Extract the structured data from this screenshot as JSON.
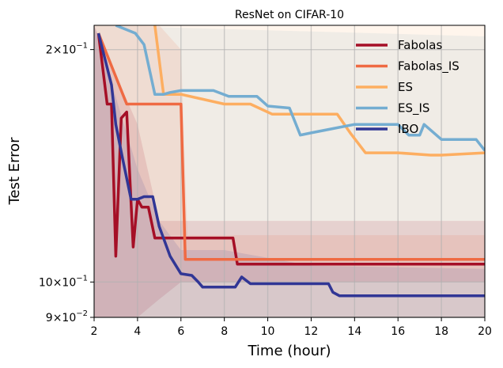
{
  "chart_data": {
    "type": "line",
    "title": "ResNet on CIFAR-10",
    "xlabel": "Time (hour)",
    "ylabel": "Test Error",
    "yscale": "log",
    "xlim": [
      2,
      20
    ],
    "ylim": [
      0.09,
      0.215
    ],
    "grid": true,
    "legend_position": "top-right",
    "x_ticks": [
      2,
      4,
      6,
      8,
      10,
      12,
      14,
      16,
      18,
      20
    ],
    "x_tick_labels": [
      "2",
      "4",
      "6",
      "8",
      "10",
      "12",
      "14",
      "16",
      "18",
      "20"
    ],
    "y_ticks": [
      0.2,
      0.1,
      0.09
    ],
    "y_tick_labels": [
      {
        "base": "2",
        "exp": "−1",
        "value": 0.2
      },
      {
        "base": "10",
        "exp": "−1",
        "value": 0.1
      },
      {
        "base": "9",
        "exp": "−2",
        "value": 0.09
      }
    ],
    "series": [
      {
        "name": "Fabolas",
        "color": "#a50f26",
        "x": [
          2.2,
          2.6,
          2.8,
          3.0,
          3.25,
          3.5,
          3.8,
          4.0,
          4.2,
          4.5,
          4.8,
          5.5,
          6.0,
          7.0,
          8.0,
          8.4,
          8.6,
          10.0,
          12.0,
          14.0,
          16.0,
          18.0,
          20.0
        ],
        "y": [
          0.21,
          0.17,
          0.17,
          0.108,
          0.163,
          0.166,
          0.111,
          0.128,
          0.125,
          0.125,
          0.114,
          0.114,
          0.114,
          0.114,
          0.114,
          0.114,
          0.1055,
          0.1055,
          0.1055,
          0.1055,
          0.1055,
          0.1055,
          0.1055
        ]
      },
      {
        "name": "Fabolas_IS",
        "color": "#ef6a43",
        "x": [
          2.2,
          3.5,
          3.6,
          5.0,
          5.8,
          6.0,
          6.2,
          8.0,
          10.0,
          12.0,
          14.0,
          16.0,
          18.0,
          20.0
        ],
        "y": [
          0.21,
          0.17,
          0.17,
          0.17,
          0.17,
          0.17,
          0.107,
          0.107,
          0.107,
          0.107,
          0.107,
          0.107,
          0.107,
          0.107
        ]
      },
      {
        "name": "ES",
        "color": "#fdae61",
        "x": [
          4.8,
          5.2,
          6.0,
          8.0,
          9.2,
          10.2,
          11.0,
          13.2,
          13.8,
          14.5,
          16.0,
          17.5,
          18.0,
          20.0
        ],
        "y": [
          0.215,
          0.175,
          0.175,
          0.17,
          0.17,
          0.165,
          0.165,
          0.165,
          0.156,
          0.147,
          0.147,
          0.146,
          0.146,
          0.147
        ]
      },
      {
        "name": "ES_IS",
        "color": "#74add1",
        "x": [
          3.0,
          3.9,
          4.3,
          4.8,
          5.2,
          5.5,
          6.0,
          7.5,
          8.2,
          8.5,
          9.0,
          9.5,
          10.0,
          11.0,
          11.5,
          12.0,
          13.0,
          14.0,
          15.0,
          16.0,
          16.5,
          17.0,
          17.2,
          18.0,
          19.0,
          19.6,
          20.0
        ],
        "y": [
          0.215,
          0.21,
          0.203,
          0.175,
          0.175,
          0.176,
          0.177,
          0.177,
          0.174,
          0.174,
          0.174,
          0.174,
          0.169,
          0.168,
          0.155,
          0.156,
          0.158,
          0.16,
          0.16,
          0.16,
          0.155,
          0.155,
          0.16,
          0.153,
          0.153,
          0.153,
          0.148
        ]
      },
      {
        "name": "IBO",
        "color": "#313695",
        "x": [
          2.2,
          2.8,
          3.0,
          3.3,
          3.7,
          4.0,
          4.3,
          4.7,
          5.0,
          5.5,
          6.0,
          6.5,
          6.8,
          7.0,
          7.5,
          8.0,
          8.5,
          8.8,
          9.2,
          10.0,
          11.0,
          12.0,
          12.8,
          13.0,
          13.3,
          14.0,
          15.0,
          16.0,
          17.0,
          18.0,
          19.0,
          20.0
        ],
        "y": [
          0.21,
          0.18,
          0.16,
          0.145,
          0.128,
          0.128,
          0.129,
          0.129,
          0.118,
          0.108,
          0.1025,
          0.102,
          0.1,
          0.0985,
          0.0985,
          0.0985,
          0.0985,
          0.1015,
          0.0995,
          0.0995,
          0.0995,
          0.0995,
          0.0995,
          0.097,
          0.096,
          0.096,
          0.096,
          0.096,
          0.096,
          0.096,
          0.096,
          0.096
        ]
      }
    ],
    "bands": [
      {
        "series": "ES_IS",
        "color": "#74add1",
        "x": [
          2,
          20
        ],
        "lower": [
          0.09,
          0.09
        ],
        "upper": [
          0.215,
          0.208
        ]
      },
      {
        "series": "ES",
        "color": "#fdae61",
        "x": [
          2,
          20
        ],
        "lower": [
          0.09,
          0.09
        ],
        "upper": [
          0.215,
          0.215
        ]
      },
      {
        "series": "Fabolas_IS",
        "color": "#ef6a43",
        "x": [
          2,
          3,
          5,
          6,
          6.3,
          20
        ],
        "lower": [
          0.09,
          0.09,
          0.09,
          0.09,
          0.09,
          0.09
        ],
        "upper": [
          0.215,
          0.215,
          0.215,
          0.2,
          0.115,
          0.115
        ]
      },
      {
        "series": "Fabolas",
        "color": "#a50f26",
        "x": [
          2,
          4,
          5,
          6,
          8,
          20
        ],
        "lower": [
          0.09,
          0.09,
          0.095,
          0.1,
          0.1,
          0.1
        ],
        "upper": [
          0.215,
          0.16,
          0.12,
          0.12,
          0.12,
          0.12
        ]
      },
      {
        "series": "IBO",
        "color": "#313695",
        "x": [
          2,
          4,
          5,
          6,
          8,
          12,
          20
        ],
        "lower": [
          0.09,
          0.09,
          0.09,
          0.09,
          0.09,
          0.09,
          0.09
        ],
        "upper": [
          0.215,
          0.14,
          0.12,
          0.11,
          0.11,
          0.105,
          0.104
        ]
      }
    ]
  }
}
